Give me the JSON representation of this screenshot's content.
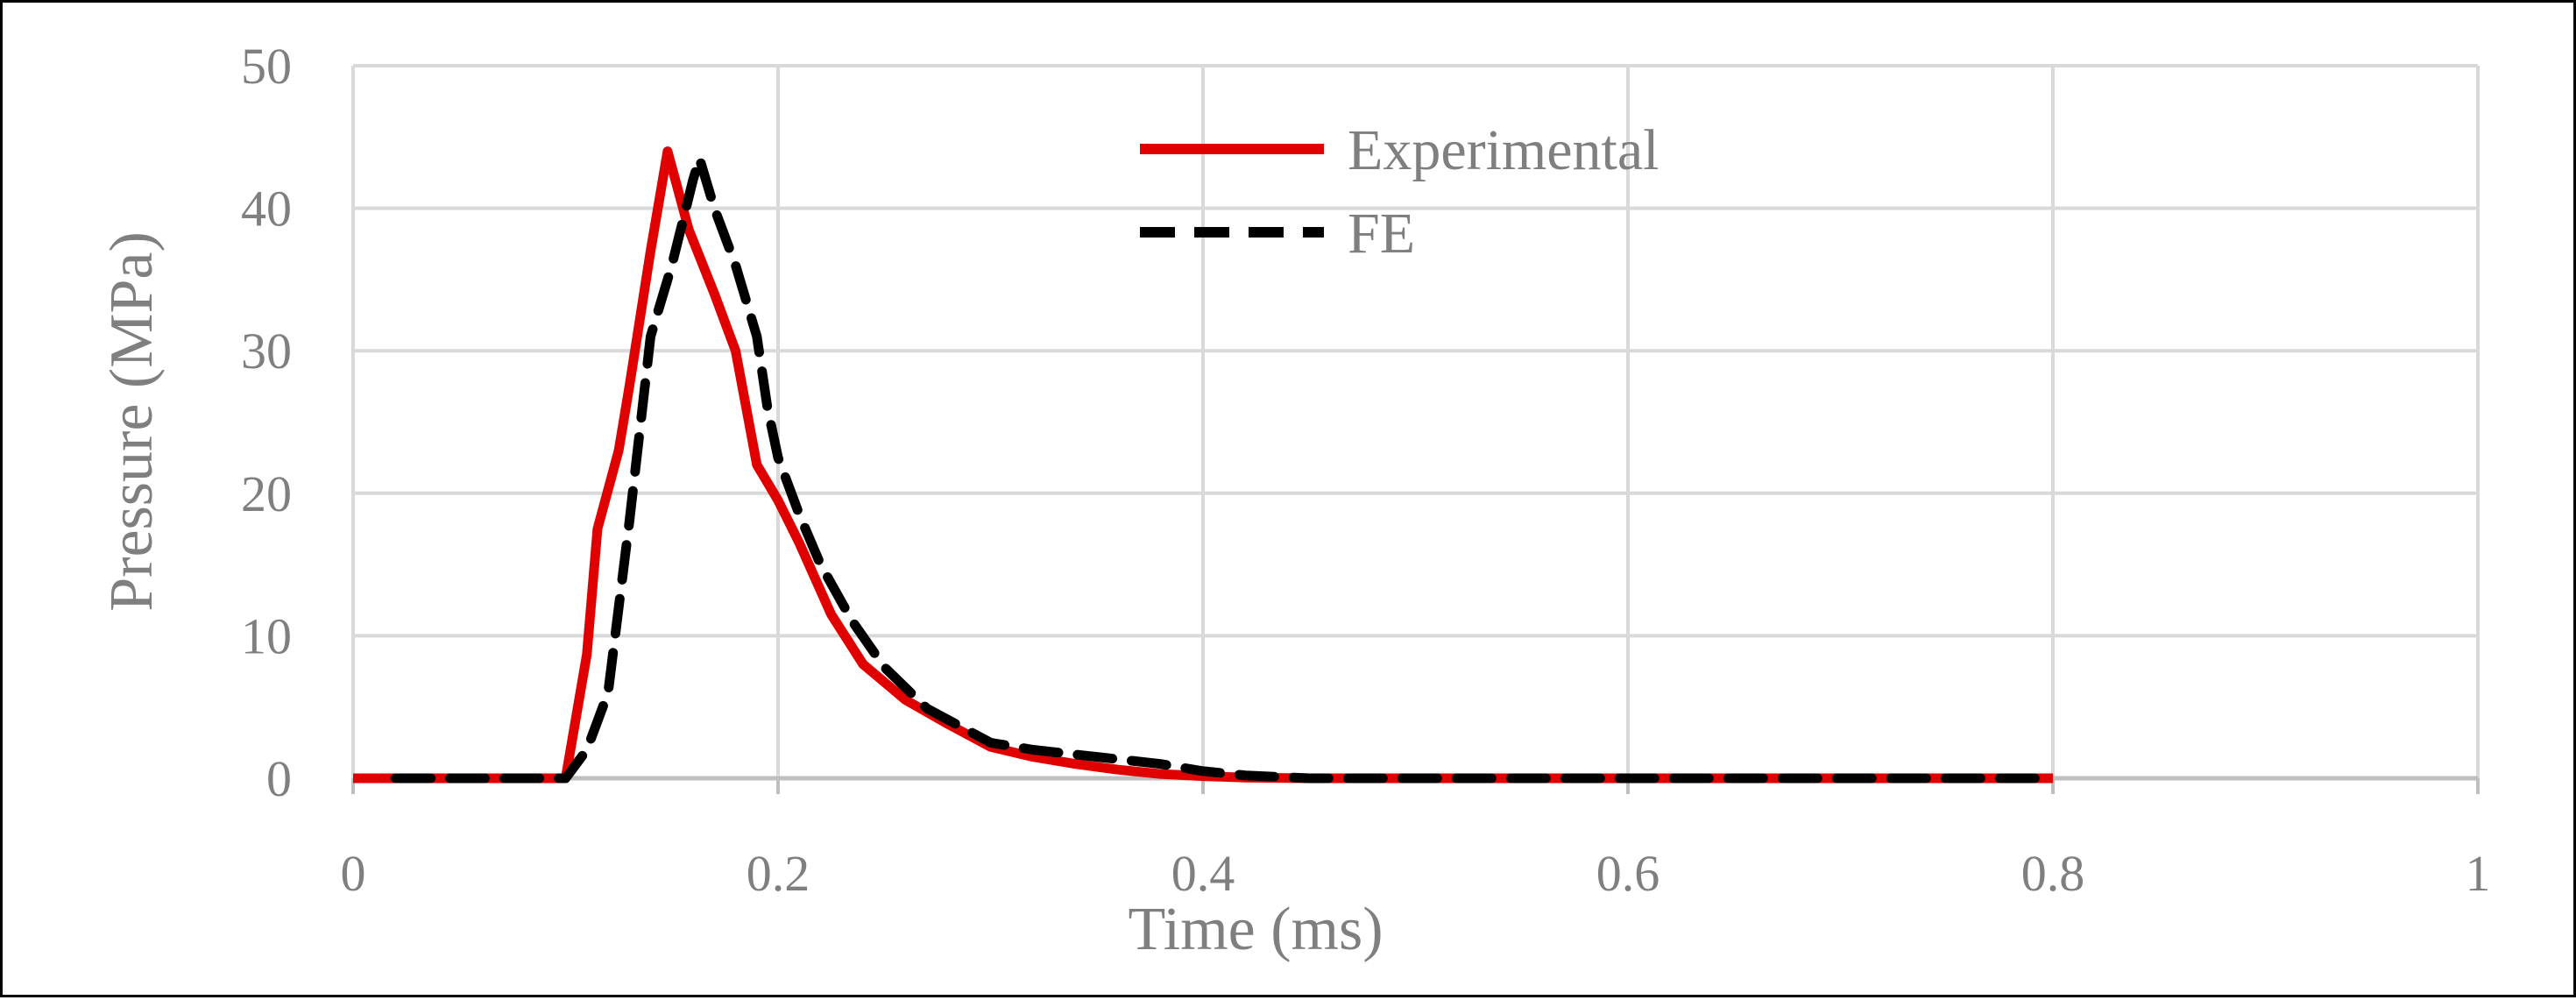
{
  "chart_data": {
    "type": "line",
    "title": "",
    "xlabel": "Time (ms)",
    "ylabel": "Pressure (MPa)",
    "xlim": [
      0,
      1
    ],
    "ylim": [
      0,
      50
    ],
    "xticks": [
      0,
      0.2,
      0.4,
      0.6,
      0.8,
      1
    ],
    "xtick_labels": [
      "0",
      "0.2",
      "0.4",
      "0.6",
      "0.8",
      "1"
    ],
    "yticks": [
      0,
      10,
      20,
      30,
      40,
      50
    ],
    "ytick_labels": [
      "0",
      "10",
      "20",
      "30",
      "40",
      "50"
    ],
    "grid": true,
    "legend_position": "top-center",
    "series": [
      {
        "name": "Experimental",
        "color": "#e00000",
        "style": "solid",
        "x": [
          0,
          0.05,
          0.1,
          0.1,
          0.11,
          0.115,
          0.125,
          0.13,
          0.14,
          0.148,
          0.158,
          0.17,
          0.18,
          0.19,
          0.2,
          0.21,
          0.225,
          0.24,
          0.26,
          0.28,
          0.3,
          0.32,
          0.34,
          0.36,
          0.38,
          0.4,
          0.42,
          0.45,
          0.5,
          0.6,
          0.7,
          0.8
        ],
        "y": [
          0,
          0,
          0,
          0,
          8.7,
          17.5,
          23,
          27.5,
          37,
          44,
          38.5,
          34,
          30,
          22,
          19.5,
          16.5,
          11.5,
          8,
          5.5,
          3.8,
          2.2,
          1.5,
          1,
          0.6,
          0.3,
          0.15,
          0.05,
          0,
          0,
          0,
          0,
          0
        ]
      },
      {
        "name": "FE",
        "color": "#000000",
        "style": "dashed",
        "x": [
          0.02,
          0.05,
          0.1,
          0.1,
          0.11,
          0.12,
          0.13,
          0.14,
          0.15,
          0.16,
          0.163,
          0.17,
          0.18,
          0.19,
          0.195,
          0.2,
          0.21,
          0.22,
          0.235,
          0.25,
          0.27,
          0.3,
          0.32,
          0.35,
          0.38,
          0.4,
          0.42,
          0.45,
          0.5,
          0.6,
          0.7,
          0.8
        ],
        "y": [
          0,
          0,
          0,
          0,
          2,
          6,
          18,
          31,
          36,
          42,
          43.5,
          40,
          36,
          31,
          26,
          22.5,
          18.5,
          15,
          11,
          7.8,
          4.9,
          2.5,
          2.0,
          1.5,
          1.0,
          0.5,
          0.2,
          0,
          0,
          0,
          0,
          0
        ]
      }
    ]
  }
}
